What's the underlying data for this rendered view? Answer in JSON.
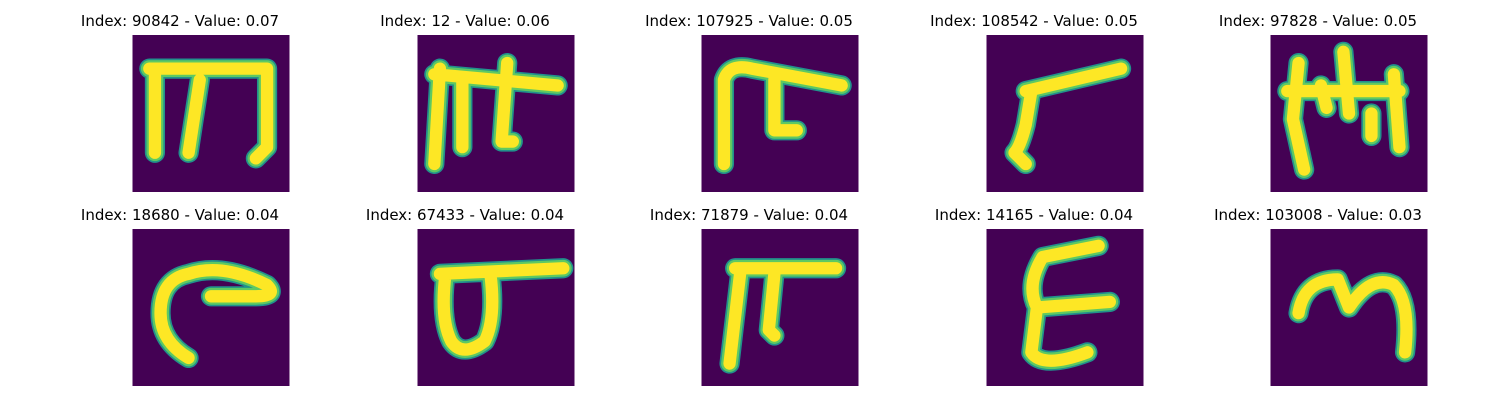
{
  "colors": {
    "background": "#440154",
    "stroke_core": "#fde725",
    "stroke_edge": "#5ec962",
    "stroke_outer": "#21918c"
  },
  "panels": [
    {
      "title": "Index: 90842 - Value: 0.07",
      "glyph": "m-shape-serif"
    },
    {
      "title": "Index: 12 - Value: 0.06",
      "glyph": "m-shape-cross"
    },
    {
      "title": "Index: 107925 - Value: 0.05",
      "glyph": "hook-shape"
    },
    {
      "title": "Index: 108542 - Value: 0.05",
      "glyph": "gamma-shape"
    },
    {
      "title": "Index: 97828 - Value: 0.05",
      "glyph": "m-shape-tall"
    },
    {
      "title": "Index: 18680 - Value: 0.04",
      "glyph": "c-arc-shape"
    },
    {
      "title": "Index: 67433 - Value: 0.04",
      "glyph": "loop-bar-shape"
    },
    {
      "title": "Index: 71879 - Value: 0.04",
      "glyph": "pi-shape"
    },
    {
      "title": "Index: 14165 - Value: 0.04",
      "glyph": "e-shape"
    },
    {
      "title": "Index: 103008 - Value: 0.03",
      "glyph": "m-round-shape"
    }
  ]
}
